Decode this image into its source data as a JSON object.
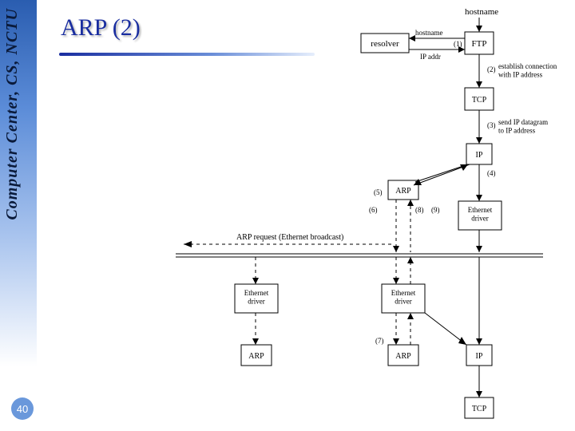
{
  "sidebar": {
    "label": "Computer Center, CS, NCTU"
  },
  "page_number": "40",
  "title": "ARP (2)",
  "diagram": {
    "stroke": "#000000",
    "dash": "4,4",
    "font_small": 11,
    "font_tiny": 9,
    "nodes": {
      "hostname_top": {
        "label": "hostname"
      },
      "ftp": {
        "label": "FTP"
      },
      "resolver": {
        "label": "resolver"
      },
      "tcp1": {
        "label": "TCP"
      },
      "ip1": {
        "label": "IP"
      },
      "arp_top": {
        "label": "ARP"
      },
      "ethdrv_top_r": {
        "label": "Ethernet\ndriver"
      },
      "ethdrv_bot_l": {
        "label": "Ethernet\ndriver"
      },
      "ethdrv_bot_m": {
        "label": "Ethernet\ndriver"
      },
      "arp_bot_l": {
        "label": "ARP"
      },
      "arp_bot_m": {
        "label": "ARP"
      },
      "ip_bot": {
        "label": "IP"
      },
      "tcp_bot": {
        "label": "TCP"
      }
    },
    "edge_labels": {
      "hostname2": "hostname",
      "ipaddr": "IP addr",
      "s1": "(1)",
      "s2": "(2)",
      "s2txt": "establish connection\nwith IP address",
      "s3": "(3)",
      "s3txt": "send IP datagram\nto IP address",
      "s4": "(4)",
      "s5": "(5)",
      "s6": "(6)",
      "s7": "(7)",
      "s8": "(8)",
      "s9": "(9)",
      "arpreq": "ARP request (Ethernet broadcast)"
    }
  }
}
